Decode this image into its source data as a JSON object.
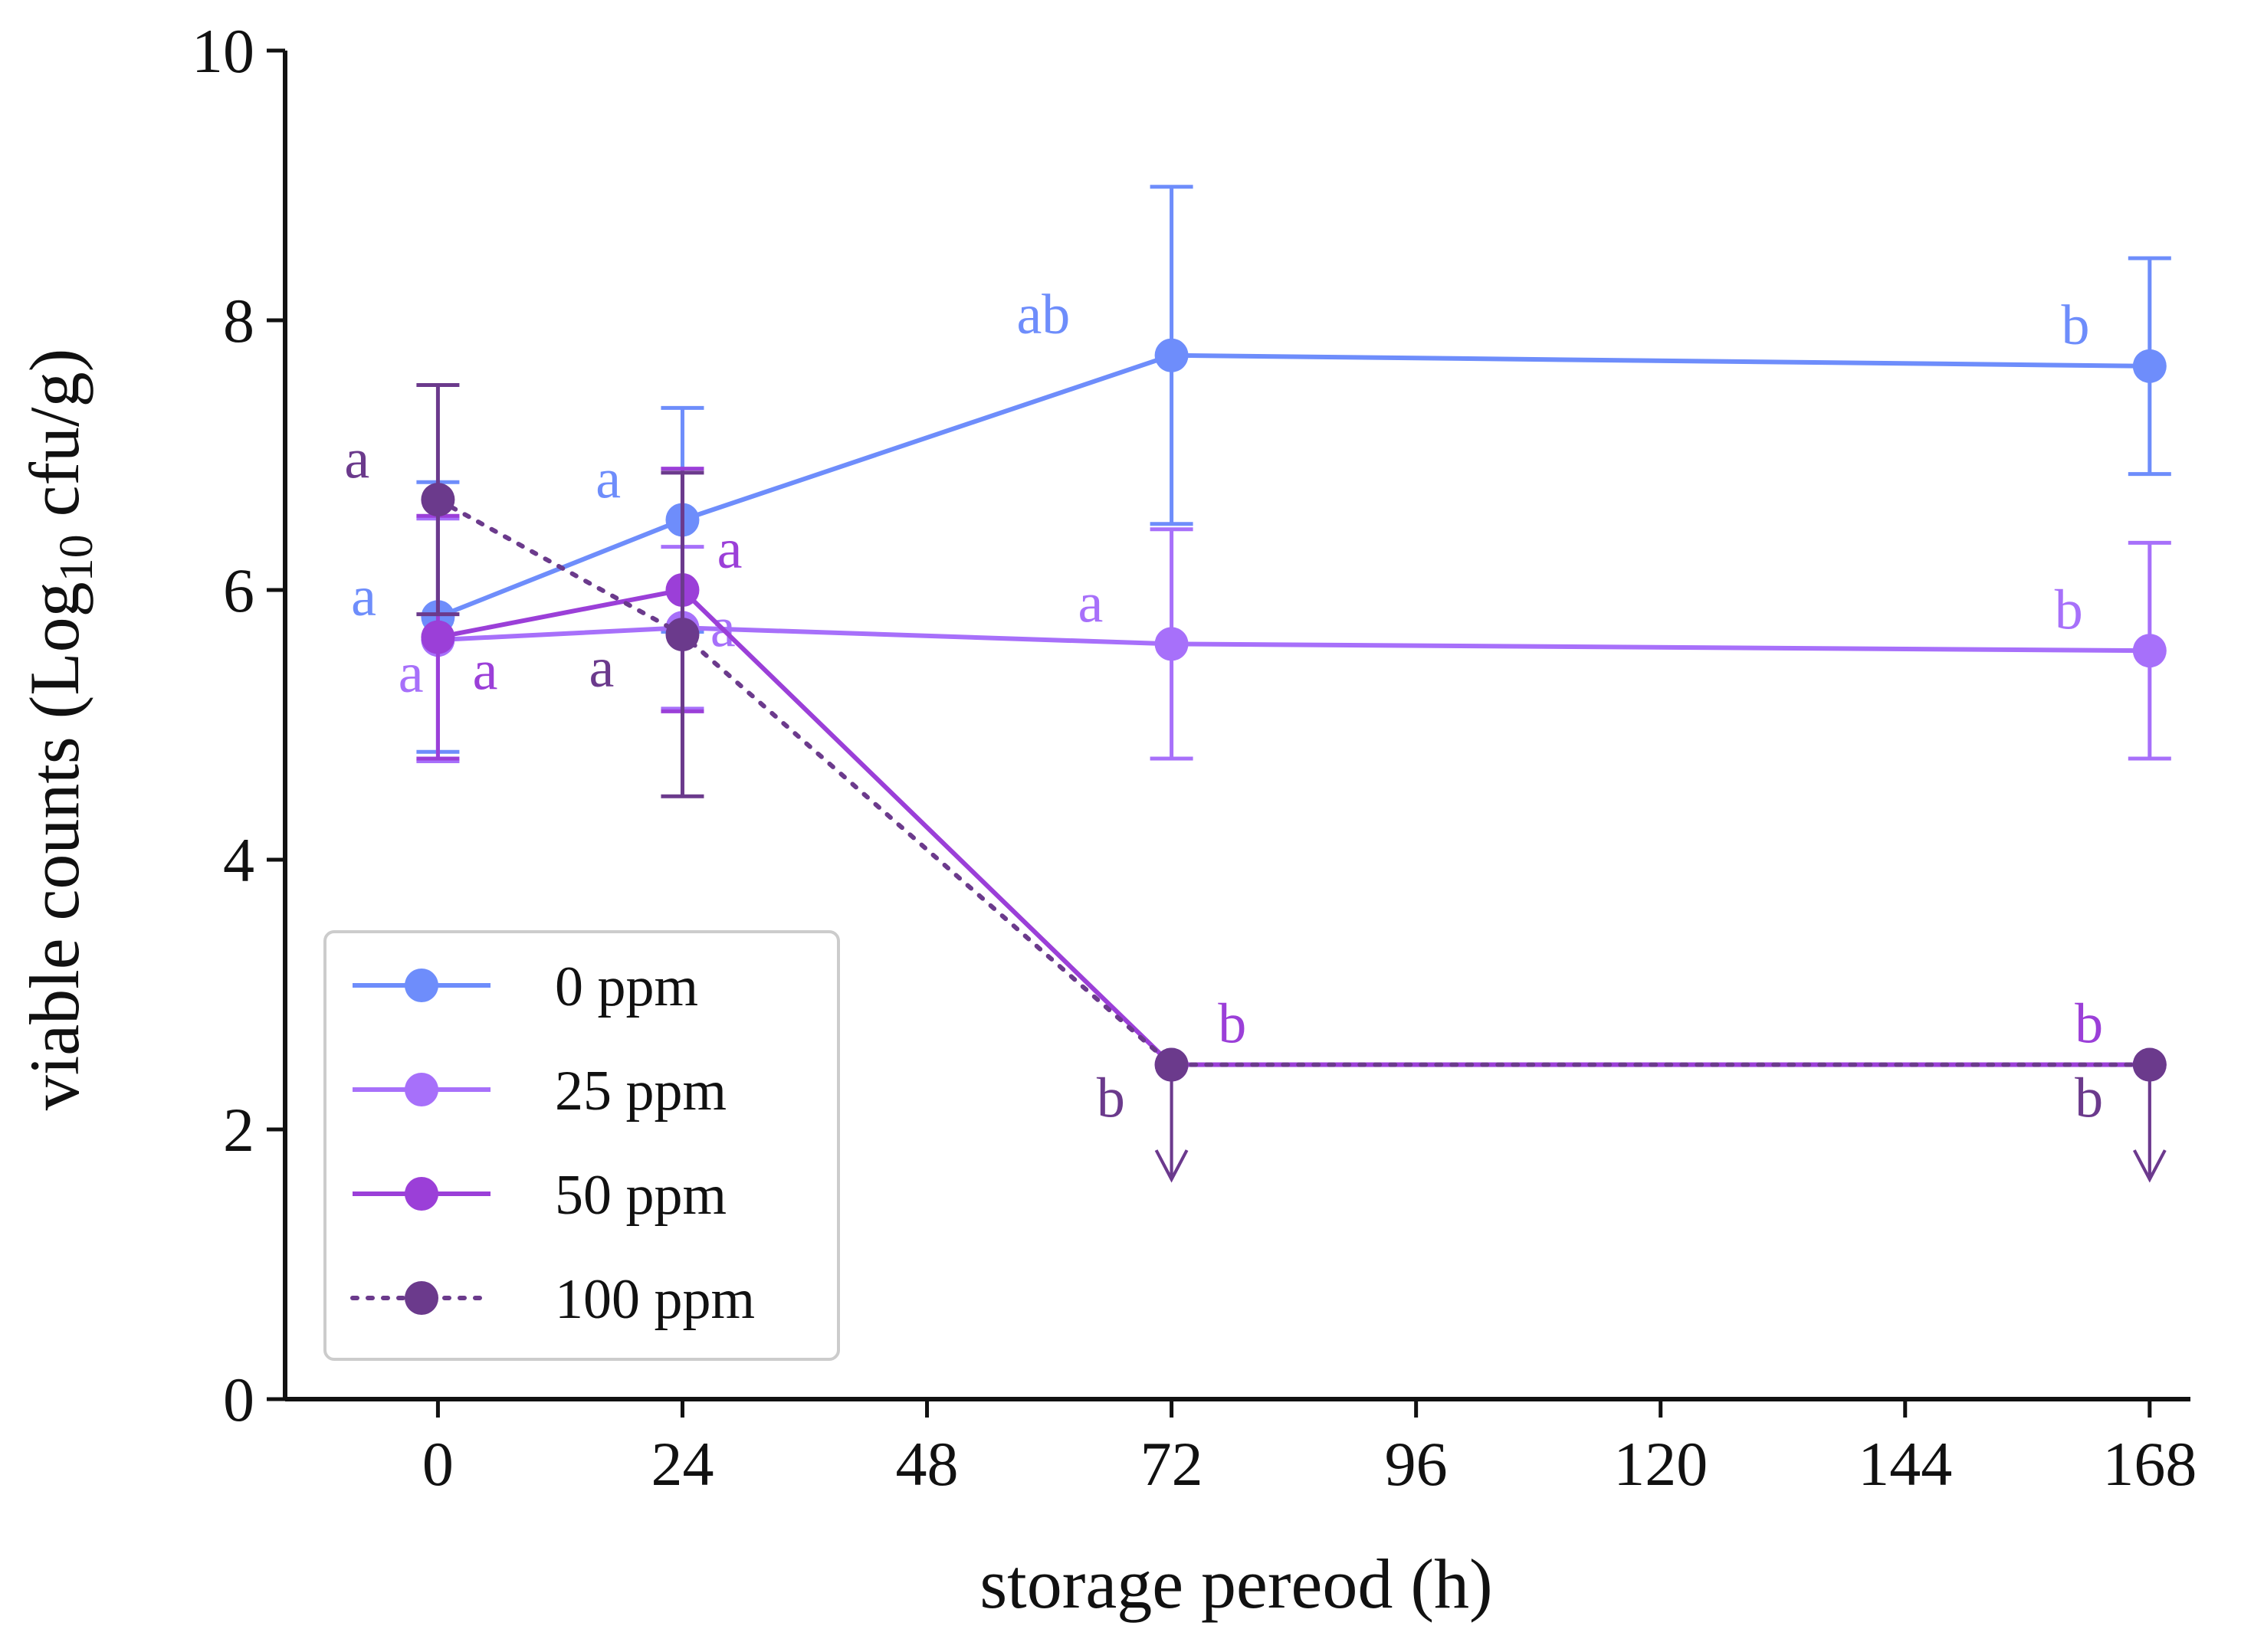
{
  "chart_data": {
    "type": "line",
    "title": "",
    "xlabel": "storage pereod (h)",
    "ylabel": "viable counts (Log10 cfu/g)",
    "ylabel_parts": {
      "before": "viable counts (Log",
      "subscript": "10",
      "after": " cfu/g)"
    },
    "xlim": [
      -15,
      172
    ],
    "ylim": [
      0,
      10
    ],
    "x_ticks": [
      0,
      24,
      48,
      72,
      96,
      120,
      144,
      168
    ],
    "y_ticks": [
      0,
      2,
      4,
      6,
      8,
      10
    ],
    "grid": false,
    "legend_position": "lower-left",
    "series": [
      {
        "name": "0 ppm",
        "color": "#6e8dfb",
        "dash": false,
        "x": [
          0,
          24,
          72,
          168
        ],
        "y": [
          5.8,
          6.52,
          7.74,
          7.66
        ],
        "err": [
          1.0,
          0.83,
          1.25,
          0.8
        ],
        "labels": [
          "a",
          "a",
          "ab",
          "b"
        ],
        "label_offsets": [
          [
            -0.55,
            0.15
          ],
          [
            -0.55,
            0.3
          ],
          [
            -0.95,
            0.3
          ],
          [
            -0.55,
            0.3
          ]
        ],
        "censored": [
          false,
          false,
          false,
          false
        ]
      },
      {
        "name": "25 ppm",
        "color": "#a770fa",
        "dash": false,
        "x": [
          0,
          24,
          72,
          168
        ],
        "y": [
          5.63,
          5.72,
          5.6,
          5.55
        ],
        "err": [
          0.9,
          0.6,
          0.85,
          0.8
        ],
        "labels": [
          "a",
          "a",
          "a",
          "b"
        ],
        "label_offsets": [
          [
            -0.2,
            -0.25
          ],
          [
            0.3,
            0.0
          ],
          [
            -0.6,
            0.3
          ],
          [
            -0.6,
            0.3
          ]
        ],
        "censored": [
          false,
          false,
          false,
          false
        ]
      },
      {
        "name": "50 ppm",
        "color": "#9b3fd8",
        "dash": false,
        "x": [
          0,
          24,
          72,
          168
        ],
        "y": [
          5.65,
          6.0,
          2.48,
          2.48
        ],
        "err": [
          0.9,
          0.9,
          0.0,
          0.0
        ],
        "labels": [
          "a",
          "a",
          "b",
          "b"
        ],
        "label_offsets": [
          [
            0.35,
            -0.25
          ],
          [
            0.35,
            0.3
          ],
          [
            0.45,
            0.3
          ],
          [
            -0.45,
            0.3
          ]
        ],
        "censored": [
          false,
          false,
          true,
          true
        ]
      },
      {
        "name": "100 ppm",
        "color": "#6b3a8c",
        "dash": true,
        "x": [
          0,
          24,
          72,
          168
        ],
        "y": [
          6.67,
          5.67,
          2.48,
          2.48
        ],
        "err": [
          0.85,
          1.2,
          0.0,
          0.0
        ],
        "labels": [
          "a",
          "a",
          "b",
          "b"
        ],
        "label_offsets": [
          [
            -0.6,
            0.3
          ],
          [
            -0.6,
            -0.25
          ],
          [
            -0.45,
            -0.25
          ],
          [
            -0.45,
            -0.25
          ]
        ],
        "censored": [
          false,
          false,
          true,
          true
        ]
      }
    ]
  }
}
